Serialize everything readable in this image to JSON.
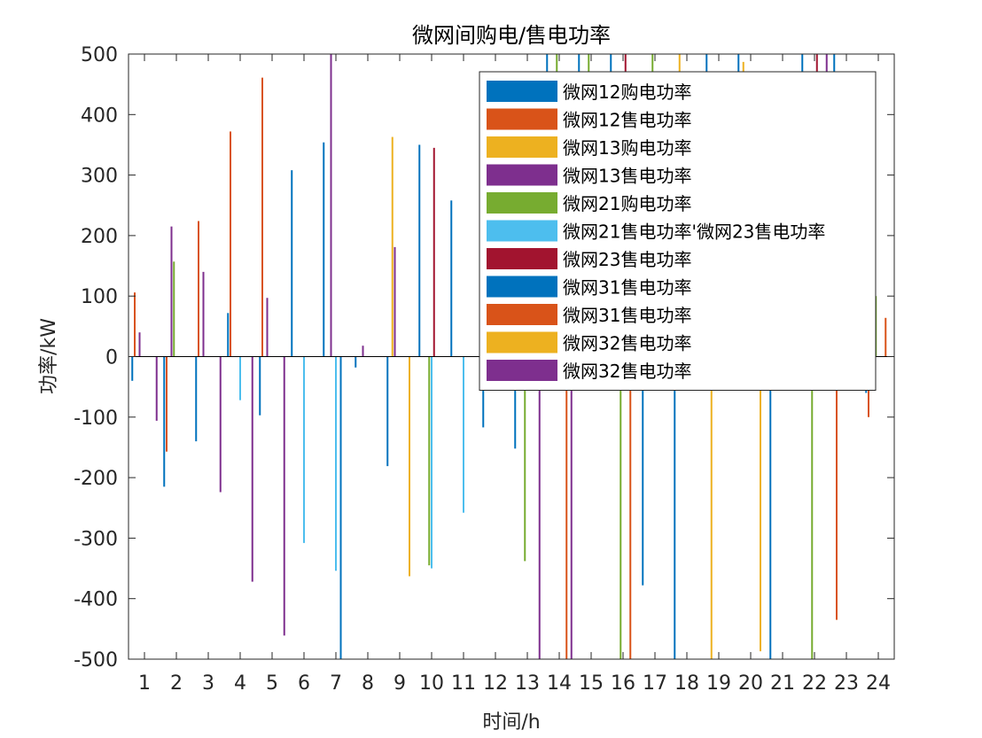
{
  "chart_data": {
    "type": "bar",
    "title": "微网间购电/售电功率",
    "xlabel": "时间/h",
    "ylabel": "功率/kW",
    "ylim": [
      -500,
      500
    ],
    "yticks": [
      -500,
      -400,
      -300,
      -200,
      -100,
      0,
      100,
      200,
      300,
      400,
      500
    ],
    "categories": [
      "1",
      "2",
      "3",
      "4",
      "5",
      "6",
      "7",
      "8",
      "9",
      "10",
      "11",
      "12",
      "13",
      "14",
      "15",
      "16",
      "17",
      "18",
      "19",
      "20",
      "21",
      "22",
      "23",
      "24"
    ],
    "grid": false,
    "legend_position": "top-right",
    "series": [
      {
        "name": "微网12购电功率",
        "color": "#0072BD",
        "values": [
          -40,
          -215,
          -140,
          72,
          -97,
          308,
          354,
          -18,
          -181,
          350,
          258,
          -117,
          -152,
          500,
          500,
          500,
          -378,
          -500,
          500,
          500,
          -500,
          500,
          500,
          -60
        ]
      },
      {
        "name": "微网12售电功率",
        "color": "#D95319",
        "values": [
          106,
          -157,
          224,
          372,
          461,
          0,
          0,
          0,
          0,
          0,
          0,
          0,
          0,
          0,
          0,
          0,
          0,
          0,
          0,
          0,
          0,
          0,
          -435,
          -100
        ]
      },
      {
        "name": "微网13购电功率",
        "color": "#EDB120",
        "values": [
          0,
          0,
          0,
          0,
          0,
          0,
          0,
          0,
          363,
          0,
          0,
          0,
          0,
          0,
          0,
          0,
          0,
          500,
          -500,
          487,
          0,
          0,
          0,
          0
        ]
      },
      {
        "name": "微网13售电功率",
        "color": "#7E2F8E",
        "values": [
          40,
          215,
          140,
          0,
          97,
          0,
          500,
          18,
          181,
          0,
          0,
          0,
          0,
          0,
          0,
          0,
          0,
          0,
          0,
          0,
          0,
          0,
          0,
          0
        ]
      },
      {
        "name": "微网21购电功率",
        "color": "#77AC30",
        "values": [
          0,
          157,
          0,
          0,
          0,
          0,
          0,
          0,
          0,
          -345,
          0,
          0,
          -338,
          500,
          500,
          -500,
          500,
          0,
          0,
          0,
          0,
          -500,
          0,
          100
        ]
      },
      {
        "name": "微网21售电功率'微网23售电功率",
        "color": "#4DBEEE",
        "values": [
          0,
          0,
          0,
          -72,
          0,
          -308,
          -354,
          0,
          0,
          -350,
          -258,
          0,
          0,
          0,
          0,
          0,
          0,
          0,
          0,
          0,
          0,
          0,
          0,
          0
        ]
      },
      {
        "name": "微网23售电功率",
        "color": "#A2142F",
        "values": [
          0,
          0,
          0,
          0,
          0,
          0,
          0,
          0,
          0,
          345,
          0,
          0,
          0,
          0,
          0,
          500,
          0,
          0,
          0,
          0,
          0,
          500,
          0,
          0
        ]
      },
      {
        "name": "微网31售电功率",
        "color": "#0072BD",
        "values": [
          0,
          0,
          0,
          0,
          0,
          0,
          -500,
          0,
          0,
          0,
          0,
          0,
          0,
          0,
          0,
          0,
          0,
          0,
          0,
          0,
          0,
          0,
          0,
          0
        ]
      },
      {
        "name": "微网31售电功率",
        "color": "#D95319",
        "values": [
          0,
          0,
          0,
          0,
          0,
          0,
          0,
          0,
          0,
          0,
          0,
          0,
          0,
          -500,
          0,
          -500,
          0,
          0,
          0,
          0,
          0,
          0,
          0,
          64
        ]
      },
      {
        "name": "微网32售电功率",
        "color": "#EDB120",
        "values": [
          0,
          0,
          0,
          0,
          0,
          0,
          0,
          0,
          -363,
          0,
          0,
          0,
          0,
          0,
          0,
          0,
          0,
          0,
          0,
          -487,
          0,
          0,
          0,
          0
        ]
      },
      {
        "name": "微网32售电功率",
        "color": "#7E2F8E",
        "values": [
          -106,
          0,
          -224,
          -372,
          -461,
          0,
          0,
          0,
          0,
          0,
          0,
          0,
          -500,
          -500,
          0,
          0,
          0,
          0,
          0,
          0,
          0,
          500,
          0,
          0
        ]
      }
    ]
  }
}
